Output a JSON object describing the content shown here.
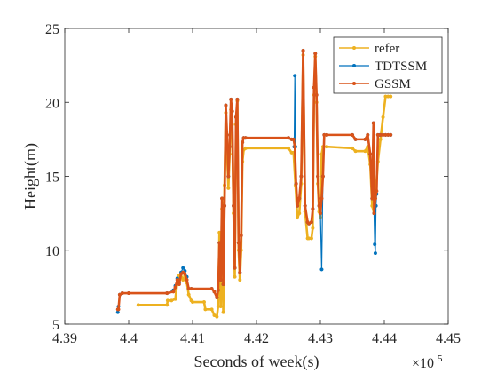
{
  "chart_data": {
    "type": "line",
    "xlabel": "Seconds of week(s)",
    "ylabel": "Height(m)",
    "x_exponent_label": "×10",
    "x_exponent_power": "5",
    "xlim": [
      4.39,
      4.45
    ],
    "ylim": [
      5,
      25
    ],
    "x_ticks": [
      4.39,
      4.4,
      4.41,
      4.42,
      4.43,
      4.44,
      4.45
    ],
    "x_tick_labels": [
      "4.39",
      "4.4",
      "4.41",
      "4.42",
      "4.43",
      "4.44",
      "4.45"
    ],
    "y_ticks": [
      5,
      10,
      15,
      20,
      25
    ],
    "y_tick_labels": [
      "5",
      "10",
      "15",
      "20",
      "25"
    ],
    "grid": false,
    "legend_position": "top-right",
    "series": [
      {
        "name": "refer",
        "color": "#EDB120",
        "marker": true,
        "x": [
          4.4015,
          4.406,
          4.4061,
          4.4067,
          4.4073,
          4.4076,
          4.4079,
          4.4082,
          4.4085,
          4.4088,
          4.4091,
          4.4094,
          4.4098,
          4.41,
          4.4118,
          4.412,
          4.413,
          4.4134,
          4.4138,
          4.414,
          4.4142,
          4.4144,
          4.4146,
          4.4148,
          4.415,
          4.4152,
          4.4154,
          4.4156,
          4.4158,
          4.416,
          4.4162,
          4.4164,
          4.4166,
          4.4168,
          4.417,
          4.4172,
          4.4174,
          4.4176,
          4.4178,
          4.418,
          4.4183,
          4.425,
          4.4255,
          4.4258,
          4.4261,
          4.4264,
          4.4267,
          4.427,
          4.4273,
          4.4276,
          4.428,
          4.4282,
          4.4286,
          4.4288,
          4.429,
          4.4292,
          4.4294,
          4.4296,
          4.4298,
          4.43,
          4.4302,
          4.4304,
          4.431,
          4.435,
          4.4355,
          4.437,
          4.4374,
          4.4378,
          4.4381,
          4.4384,
          4.4386,
          4.439,
          4.4394,
          4.4398,
          4.4402,
          4.4406,
          4.441
        ],
        "y": [
          6.3,
          6.3,
          6.6,
          6.6,
          6.7,
          7.8,
          8.3,
          8.2,
          8.0,
          8.3,
          7.8,
          7.0,
          6.6,
          6.5,
          6.5,
          6.0,
          6.0,
          5.6,
          5.5,
          6.2,
          11.2,
          6.2,
          12.8,
          5.8,
          14.4,
          19.3,
          16.5,
          14.2,
          16.5,
          19.5,
          18.5,
          12.5,
          8.2,
          18.5,
          20.1,
          10.0,
          8.0,
          10.0,
          16.0,
          16.8,
          16.9,
          16.9,
          16.6,
          16.6,
          14.4,
          12.2,
          12.5,
          14.5,
          23.2,
          12.6,
          10.8,
          10.8,
          10.8,
          11.5,
          20.5,
          23.1,
          20.0,
          14.5,
          12.6,
          12.2,
          16.5,
          17.0,
          17.0,
          16.9,
          16.7,
          16.7,
          17.0,
          15.8,
          13.0,
          12.5,
          13.5,
          16.0,
          17.5,
          19.0,
          20.4,
          20.4,
          20.4
        ]
      },
      {
        "name": "TDTSSM",
        "color": "#0072BD",
        "marker": true,
        "x": [
          4.3983,
          4.3984,
          4.3986,
          4.399,
          4.4,
          4.406,
          4.407,
          4.4073,
          4.4076,
          4.4079,
          4.4082,
          4.4085,
          4.4088,
          4.4091,
          4.4094,
          4.4098,
          4.413,
          4.4134,
          4.4138,
          4.414,
          4.4142,
          4.4144,
          4.4146,
          4.4148,
          4.415,
          4.4152,
          4.4154,
          4.4156,
          4.4158,
          4.416,
          4.4162,
          4.4164,
          4.4166,
          4.4168,
          4.417,
          4.4172,
          4.4174,
          4.4176,
          4.4178,
          4.418,
          4.4183,
          4.425,
          4.4255,
          4.4258,
          4.4259,
          4.426,
          4.4261,
          4.4262,
          4.4264,
          4.4267,
          4.427,
          4.4273,
          4.4276,
          4.428,
          4.4282,
          4.4286,
          4.4288,
          4.429,
          4.4292,
          4.4294,
          4.4296,
          4.4298,
          4.43,
          4.4302,
          4.4304,
          4.4306,
          4.431,
          4.435,
          4.4355,
          4.437,
          4.4374,
          4.4378,
          4.4381,
          4.4383,
          4.4384,
          4.4385,
          4.4386,
          4.4387,
          4.4388,
          4.439,
          4.4392,
          4.4394,
          4.4398,
          4.4402,
          4.4406,
          4.441
        ],
        "y": [
          5.8,
          6.2,
          7.0,
          7.1,
          7.1,
          7.1,
          7.3,
          7.6,
          8.1,
          7.8,
          8.5,
          8.8,
          8.6,
          8.2,
          7.4,
          7.4,
          7.4,
          7.2,
          6.8,
          7.3,
          10.5,
          8.0,
          13.5,
          7.7,
          13.0,
          19.8,
          17.8,
          15.0,
          17.0,
          20.2,
          19.4,
          13.0,
          8.8,
          19.0,
          20.2,
          10.5,
          8.5,
          11.0,
          17.3,
          17.6,
          17.6,
          17.6,
          17.5,
          17.5,
          17.0,
          21.8,
          17.0,
          14.5,
          13.0,
          13.5,
          15.0,
          23.5,
          13.0,
          11.9,
          11.8,
          11.9,
          12.8,
          21.0,
          23.3,
          20.5,
          15.0,
          13.0,
          12.5,
          8.7,
          15.0,
          17.8,
          17.8,
          17.8,
          17.5,
          17.5,
          17.8,
          16.5,
          13.5,
          18.6,
          12.5,
          10.4,
          9.8,
          13.0,
          13.8,
          17.8,
          17.8,
          17.8,
          17.8,
          17.8,
          17.8,
          17.8
        ]
      },
      {
        "name": "GSSM",
        "color": "#D95319",
        "marker": true,
        "x": [
          4.3983,
          4.3984,
          4.3986,
          4.399,
          4.4,
          4.406,
          4.407,
          4.4073,
          4.4076,
          4.4079,
          4.4082,
          4.4085,
          4.4088,
          4.4091,
          4.4094,
          4.4098,
          4.413,
          4.4134,
          4.4138,
          4.414,
          4.4142,
          4.4144,
          4.4146,
          4.4148,
          4.415,
          4.4152,
          4.4154,
          4.4156,
          4.4158,
          4.416,
          4.4162,
          4.4164,
          4.4166,
          4.4168,
          4.417,
          4.4172,
          4.4174,
          4.4176,
          4.4178,
          4.418,
          4.4183,
          4.425,
          4.4255,
          4.4258,
          4.426,
          4.4262,
          4.4264,
          4.4267,
          4.427,
          4.4273,
          4.4276,
          4.428,
          4.4282,
          4.4286,
          4.4288,
          4.429,
          4.4292,
          4.4294,
          4.4296,
          4.4298,
          4.43,
          4.4302,
          4.4304,
          4.4306,
          4.431,
          4.435,
          4.4355,
          4.437,
          4.4374,
          4.4378,
          4.4381,
          4.4383,
          4.4384,
          4.4386,
          4.4388,
          4.439,
          4.4394,
          4.4398,
          4.4402,
          4.4406,
          4.441
        ],
        "y": [
          6.0,
          6.0,
          7.0,
          7.1,
          7.1,
          7.1,
          7.2,
          7.5,
          8.0,
          7.7,
          8.4,
          8.5,
          8.4,
          8.0,
          7.4,
          7.4,
          7.4,
          7.2,
          6.8,
          7.3,
          10.5,
          8.0,
          13.5,
          7.7,
          13.0,
          19.8,
          17.8,
          15.0,
          17.0,
          20.2,
          19.4,
          13.0,
          8.8,
          19.0,
          20.2,
          10.5,
          8.5,
          11.0,
          17.3,
          17.6,
          17.6,
          17.6,
          17.5,
          17.5,
          17.0,
          14.5,
          13.0,
          13.5,
          15.0,
          23.5,
          13.0,
          11.9,
          11.8,
          11.9,
          12.8,
          21.0,
          23.3,
          20.5,
          15.0,
          13.0,
          12.5,
          13.5,
          15.0,
          17.8,
          17.8,
          17.8,
          17.5,
          17.5,
          17.8,
          16.5,
          13.5,
          18.6,
          12.5,
          13.5,
          14.0,
          17.8,
          17.8,
          17.8,
          17.8,
          17.8,
          17.8
        ]
      }
    ]
  }
}
